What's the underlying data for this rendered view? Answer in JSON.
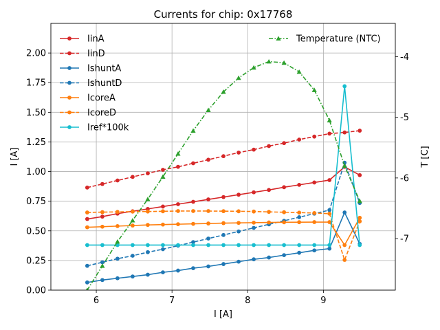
{
  "chart_data": {
    "type": "line",
    "title": "Currents for chip: 0x17768",
    "xlabel": "I [A]",
    "ylabel": "I [A]",
    "y2label": "T [C]",
    "xlim": [
      5.4,
      9.95
    ],
    "ylim": [
      0,
      2.25
    ],
    "y2lim": [
      -7.85,
      -3.45
    ],
    "xticks": [
      6,
      7,
      8,
      9
    ],
    "yticks": [
      0.0,
      0.25,
      0.5,
      0.75,
      1.0,
      1.25,
      1.5,
      1.75,
      2.0
    ],
    "y2ticks": [
      -7,
      -6,
      -5,
      -4
    ],
    "grid": true,
    "legend_placement": "upper-left",
    "legend2_placement": "upper-right",
    "x": [
      5.88,
      6.08,
      6.28,
      6.48,
      6.68,
      6.88,
      7.08,
      7.28,
      7.48,
      7.68,
      7.88,
      8.08,
      8.28,
      8.48,
      8.68,
      8.88,
      9.08,
      9.28,
      9.48
    ],
    "series": [
      {
        "name": "IinA",
        "color": "#d62728",
        "dashed": false,
        "axis": "left",
        "values": [
          0.6,
          0.62,
          0.645,
          0.665,
          0.685,
          0.705,
          0.725,
          0.745,
          0.765,
          0.785,
          0.805,
          0.825,
          0.845,
          0.868,
          0.888,
          0.908,
          0.928,
          1.04,
          0.97
        ]
      },
      {
        "name": "IinD",
        "color": "#d62728",
        "dashed": true,
        "axis": "left",
        "values": [
          0.865,
          0.895,
          0.925,
          0.955,
          0.985,
          1.015,
          1.04,
          1.07,
          1.1,
          1.13,
          1.16,
          1.185,
          1.215,
          1.24,
          1.27,
          1.295,
          1.32,
          1.33,
          1.345
        ]
      },
      {
        "name": "IshuntA",
        "color": "#1f77b4",
        "dashed": false,
        "axis": "left",
        "values": [
          0.065,
          0.085,
          0.1,
          0.115,
          0.13,
          0.15,
          0.165,
          0.185,
          0.2,
          0.22,
          0.24,
          0.26,
          0.275,
          0.295,
          0.315,
          0.335,
          0.35,
          0.655,
          0.39
        ]
      },
      {
        "name": "IshuntD",
        "color": "#1f77b4",
        "dashed": true,
        "axis": "left",
        "values": [
          0.205,
          0.235,
          0.265,
          0.29,
          0.32,
          0.345,
          0.375,
          0.405,
          0.435,
          0.465,
          0.495,
          0.525,
          0.555,
          0.585,
          0.615,
          0.645,
          0.675,
          1.075,
          0.735
        ]
      },
      {
        "name": "IcoreA",
        "color": "#ff7f0e",
        "dashed": false,
        "axis": "left",
        "values": [
          0.53,
          0.535,
          0.54,
          0.545,
          0.55,
          0.553,
          0.556,
          0.559,
          0.562,
          0.565,
          0.567,
          0.569,
          0.571,
          0.572,
          0.573,
          0.574,
          0.574,
          0.38,
          0.61
        ]
      },
      {
        "name": "IcoreD",
        "color": "#ff7f0e",
        "dashed": true,
        "axis": "left",
        "values": [
          0.655,
          0.658,
          0.66,
          0.662,
          0.663,
          0.665,
          0.667,
          0.667,
          0.667,
          0.666,
          0.665,
          0.663,
          0.66,
          0.657,
          0.654,
          0.65,
          0.645,
          0.255,
          0.58
        ]
      },
      {
        "name": "Iref*100k",
        "color": "#17becf",
        "dashed": false,
        "axis": "left",
        "values": [
          0.38,
          0.38,
          0.38,
          0.38,
          0.38,
          0.38,
          0.38,
          0.38,
          0.38,
          0.38,
          0.38,
          0.38,
          0.38,
          0.38,
          0.38,
          0.38,
          0.38,
          1.72,
          0.38
        ]
      },
      {
        "name": "Temperature (NTC)",
        "color": "#2ca02c",
        "dashed": true,
        "axis": "right",
        "values": [
          -7.85,
          -7.45,
          -7.05,
          -6.7,
          -6.35,
          -5.98,
          -5.6,
          -5.22,
          -4.88,
          -4.58,
          -4.35,
          -4.18,
          -4.08,
          -4.1,
          -4.25,
          -4.55,
          -5.05,
          -5.8,
          -6.38
        ]
      }
    ]
  }
}
